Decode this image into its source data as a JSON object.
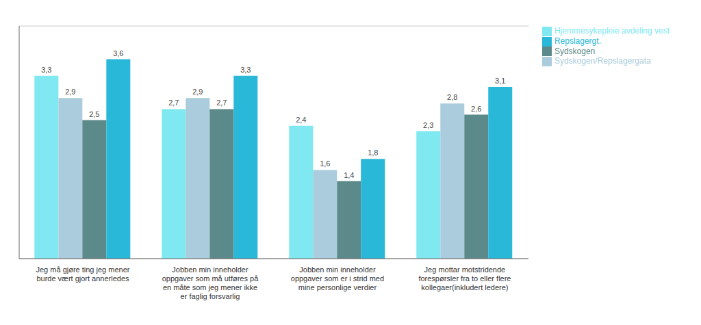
{
  "chart_data": {
    "type": "bar",
    "categories": [
      "Jeg må gjøre ting jeg mener\nburde vært gjort annerledes",
      "Jobben min inneholder\noppgaver som må utføres på\nen måte som jeg mener ikke\ner faglig forsvarlig",
      "Jobben min inneholder\noppgaver som er i strid med\nmine personlige verdier",
      "Jeg mottar motstridende\nforespørsler fra to eller flere\nkollegaer(inkludert ledere)"
    ],
    "series": [
      {
        "name": "Hjemmesykepleie avdeling vest",
        "color": "#7FE8F0",
        "values": [
          3.3,
          2.7,
          2.4,
          2.3
        ],
        "value_labels": [
          "3,3",
          "2,7",
          "2,4",
          "2,3"
        ]
      },
      {
        "name": "Sydskogen/Repslagergata",
        "color": "#AACCDD",
        "values": [
          2.9,
          2.9,
          1.6,
          2.8
        ],
        "value_labels": [
          "2,9",
          "2,9",
          "1,6",
          "2,8"
        ]
      },
      {
        "name": "Sydskogen",
        "color": "#5C8A8A",
        "values": [
          2.5,
          2.7,
          1.4,
          2.6
        ],
        "value_labels": [
          "2,5",
          "2,7",
          "1,4",
          "2,6"
        ]
      },
      {
        "name": "Repslagergt.",
        "color": "#29B8D8",
        "values": [
          3.6,
          3.3,
          1.8,
          3.1
        ],
        "value_labels": [
          "3,6",
          "3,3",
          "1,8",
          "3,1"
        ]
      }
    ],
    "ylim": [
      0,
      4.2
    ],
    "yticks": [
      0.5,
      1.0,
      1.5,
      2.0,
      2.5,
      3.0,
      3.5
    ],
    "grid": true,
    "legend": "right",
    "data_labels": true,
    "tick_labels": "x"
  }
}
